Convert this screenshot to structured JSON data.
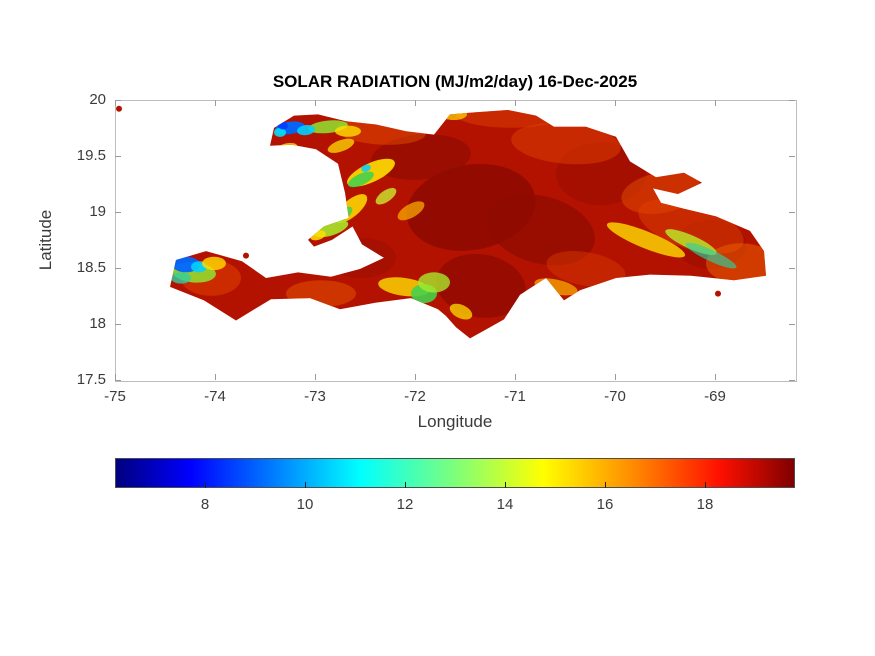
{
  "chart_data": {
    "type": "heatmap",
    "title": "SOLAR RADIATION (MJ/m2/day) 16-Dec-2025",
    "xlabel": "Longitude",
    "ylabel": "Latitude",
    "region": "Hispaniola (Haiti and Dominican Republic)",
    "units": "MJ/m2/day",
    "xlim": [
      -75,
      -68.2
    ],
    "ylim": [
      17.5,
      20
    ],
    "x_ticks": [
      -75,
      -74,
      -73,
      -72,
      -71,
      -70,
      -69
    ],
    "y_ticks": [
      20,
      19.5,
      19,
      18.5,
      18,
      17.5
    ],
    "grid": false,
    "value_summary": "Island mostly 17-19.5 MJ/m2/day (red to dark red); low-radiation patches 8-14 MJ/m2/day (blue/cyan/green/yellow) over the northwest peninsula, the southwest Tiburon peninsula tip and scattered mountain ridges",
    "base_color": "#b31200",
    "colorbar": {
      "orientation": "horizontal",
      "colormap": "jet",
      "range": [
        6.2,
        19.8
      ],
      "ticks": [
        8,
        10,
        12,
        14,
        16,
        18
      ],
      "stops": [
        {
          "pos": 0,
          "color": "#00007f"
        },
        {
          "pos": 11,
          "color": "#0000ff"
        },
        {
          "pos": 36,
          "color": "#00ffff"
        },
        {
          "pos": 50,
          "color": "#7dff7a"
        },
        {
          "pos": 63,
          "color": "#ffff00"
        },
        {
          "pos": 77,
          "color": "#ff8400"
        },
        {
          "pos": 89,
          "color": "#ff1000"
        },
        {
          "pos": 100,
          "color": "#7f0000"
        }
      ]
    },
    "coastline": [
      [
        -73.42,
        19.76
      ],
      [
        -73.22,
        19.87
      ],
      [
        -72.98,
        19.88
      ],
      [
        -72.7,
        19.82
      ],
      [
        -72.4,
        19.79
      ],
      [
        -72.1,
        19.73
      ],
      [
        -71.82,
        19.7
      ],
      [
        -71.66,
        19.88
      ],
      [
        -71.4,
        19.9
      ],
      [
        -71.08,
        19.92
      ],
      [
        -70.8,
        19.87
      ],
      [
        -70.62,
        19.77
      ],
      [
        -70.3,
        19.77
      ],
      [
        -70.0,
        19.68
      ],
      [
        -69.86,
        19.46
      ],
      [
        -69.6,
        19.32
      ],
      [
        -69.32,
        19.36
      ],
      [
        -69.14,
        19.27
      ],
      [
        -69.38,
        19.17
      ],
      [
        -69.63,
        19.22
      ],
      [
        -69.55,
        19.09
      ],
      [
        -69.33,
        19.04
      ],
      [
        -69.0,
        18.97
      ],
      [
        -68.66,
        18.84
      ],
      [
        -68.52,
        18.66
      ],
      [
        -68.5,
        18.44
      ],
      [
        -68.82,
        18.4
      ],
      [
        -69.25,
        18.44
      ],
      [
        -69.66,
        18.45
      ],
      [
        -70.0,
        18.42
      ],
      [
        -70.36,
        18.31
      ],
      [
        -70.52,
        18.22
      ],
      [
        -70.7,
        18.42
      ],
      [
        -70.96,
        18.27
      ],
      [
        -71.12,
        18.05
      ],
      [
        -71.32,
        17.95
      ],
      [
        -71.46,
        17.88
      ],
      [
        -71.6,
        17.98
      ],
      [
        -71.7,
        18.08
      ],
      [
        -71.78,
        18.14
      ],
      [
        -72.05,
        18.24
      ],
      [
        -72.4,
        18.2
      ],
      [
        -72.76,
        18.14
      ],
      [
        -73.06,
        18.24
      ],
      [
        -73.45,
        18.23
      ],
      [
        -73.8,
        18.04
      ],
      [
        -74.12,
        18.22
      ],
      [
        -74.46,
        18.34
      ],
      [
        -74.4,
        18.58
      ],
      [
        -74.1,
        18.66
      ],
      [
        -73.74,
        18.57
      ],
      [
        -73.5,
        18.42
      ],
      [
        -73.18,
        18.47
      ],
      [
        -72.85,
        18.43
      ],
      [
        -72.56,
        18.5
      ],
      [
        -72.32,
        18.6
      ],
      [
        -72.54,
        18.72
      ],
      [
        -72.67,
        18.94
      ],
      [
        -72.71,
        19.18
      ],
      [
        -72.78,
        19.44
      ],
      [
        -73.0,
        19.57
      ],
      [
        -73.24,
        19.61
      ],
      [
        -73.46,
        19.6
      ]
    ],
    "gonave_island": [
      [
        -73.08,
        18.76
      ],
      [
        -72.92,
        18.88
      ],
      [
        -72.66,
        18.96
      ],
      [
        -72.6,
        18.9
      ],
      [
        -72.84,
        18.76
      ],
      [
        -73.02,
        18.7
      ]
    ],
    "islets": [
      {
        "lon": -74.97,
        "lat": 19.93,
        "r": 3
      },
      {
        "lon": -68.98,
        "lat": 18.28,
        "r": 3
      },
      {
        "lon": -73.7,
        "lat": 18.62,
        "r": 3
      }
    ],
    "patches": [
      {
        "lon": -71.45,
        "lat": 19.05,
        "rx": 0.65,
        "ry": 0.38,
        "rot": -10,
        "color": "#8c0900",
        "op": 0.85
      },
      {
        "lon": -70.75,
        "lat": 18.85,
        "rx": 0.55,
        "ry": 0.3,
        "rot": 15,
        "color": "#900b00",
        "op": 0.75
      },
      {
        "lon": -71.95,
        "lat": 19.5,
        "rx": 0.5,
        "ry": 0.2,
        "rot": -5,
        "color": "#900b00",
        "op": 0.7
      },
      {
        "lon": -70.15,
        "lat": 19.35,
        "rx": 0.45,
        "ry": 0.28,
        "rot": 0,
        "color": "#9a0d00",
        "op": 0.6
      },
      {
        "lon": -71.35,
        "lat": 18.35,
        "rx": 0.45,
        "ry": 0.28,
        "rot": 10,
        "color": "#8c0900",
        "op": 0.7
      },
      {
        "lon": -69.05,
        "lat": 18.72,
        "rx": 0.35,
        "ry": 0.22,
        "rot": 0,
        "color": "#9a0d00",
        "op": 0.6
      },
      {
        "lon": -72.55,
        "lat": 18.6,
        "rx": 0.35,
        "ry": 0.18,
        "rot": 0,
        "color": "#9a0d00",
        "op": 0.5
      },
      {
        "lon": -70.5,
        "lat": 19.62,
        "rx": 0.55,
        "ry": 0.18,
        "rot": 5,
        "color": "#e04000",
        "op": 0.5
      },
      {
        "lon": -69.55,
        "lat": 19.18,
        "rx": 0.4,
        "ry": 0.18,
        "rot": -10,
        "color": "#ea5500",
        "op": 0.45
      },
      {
        "lon": -69.25,
        "lat": 18.88,
        "rx": 0.55,
        "ry": 0.2,
        "rot": 18,
        "color": "#e04000",
        "op": 0.5
      },
      {
        "lon": -68.75,
        "lat": 18.55,
        "rx": 0.35,
        "ry": 0.18,
        "rot": 0,
        "color": "#ef6400",
        "op": 0.5
      },
      {
        "lon": -74.05,
        "lat": 18.42,
        "rx": 0.3,
        "ry": 0.16,
        "rot": 0,
        "color": "#e04000",
        "op": 0.55
      },
      {
        "lon": -72.95,
        "lat": 18.28,
        "rx": 0.35,
        "ry": 0.12,
        "rot": 0,
        "color": "#ea5500",
        "op": 0.5
      },
      {
        "lon": -71.05,
        "lat": 19.88,
        "rx": 0.55,
        "ry": 0.12,
        "rot": 0,
        "color": "#e04000",
        "op": 0.5
      },
      {
        "lon": -72.35,
        "lat": 19.73,
        "rx": 0.45,
        "ry": 0.12,
        "rot": 3,
        "color": "#ea5500",
        "op": 0.45
      },
      {
        "lon": -70.3,
        "lat": 18.5,
        "rx": 0.4,
        "ry": 0.15,
        "rot": 10,
        "color": "#e04000",
        "op": 0.4
      },
      {
        "lon": -72.45,
        "lat": 19.36,
        "rx": 0.26,
        "ry": 0.085,
        "rot": -25,
        "color": "#ffdf00",
        "op": 0.9
      },
      {
        "lon": -72.55,
        "lat": 19.3,
        "rx": 0.14,
        "ry": 0.05,
        "rot": -25,
        "color": "#44d14a",
        "op": 0.9
      },
      {
        "lon": -72.65,
        "lat": 19.04,
        "rx": 0.2,
        "ry": 0.075,
        "rot": -40,
        "color": "#ffdf00",
        "op": 0.85
      },
      {
        "lon": -72.72,
        "lat": 18.99,
        "rx": 0.1,
        "ry": 0.045,
        "rot": -40,
        "color": "#44d14a",
        "op": 0.85
      },
      {
        "lon": -69.7,
        "lat": 18.76,
        "rx": 0.42,
        "ry": 0.075,
        "rot": 22,
        "color": "#ffdf00",
        "op": 0.8
      },
      {
        "lon": -69.25,
        "lat": 18.74,
        "rx": 0.28,
        "ry": 0.06,
        "rot": 24,
        "color": "#bdf02a",
        "op": 0.8
      },
      {
        "lon": -69.05,
        "lat": 18.62,
        "rx": 0.28,
        "ry": 0.05,
        "rot": 25,
        "color": "#2fd0a0",
        "op": 0.65
      },
      {
        "lon": -72.12,
        "lat": 18.34,
        "rx": 0.26,
        "ry": 0.08,
        "rot": 8,
        "color": "#ffdf00",
        "op": 0.8
      },
      {
        "lon": -71.92,
        "lat": 18.28,
        "rx": 0.13,
        "ry": 0.085,
        "rot": 0,
        "color": "#44d14a",
        "op": 0.9
      },
      {
        "lon": -71.82,
        "lat": 18.38,
        "rx": 0.16,
        "ry": 0.09,
        "rot": 0,
        "color": "#a8e82a",
        "op": 0.8
      },
      {
        "lon": -71.55,
        "lat": 18.12,
        "rx": 0.12,
        "ry": 0.06,
        "rot": 25,
        "color": "#ffdf00",
        "op": 0.75
      },
      {
        "lon": -70.6,
        "lat": 18.34,
        "rx": 0.22,
        "ry": 0.065,
        "rot": 12,
        "color": "#ffb300",
        "op": 0.7
      },
      {
        "lon": -71.62,
        "lat": 19.88,
        "rx": 0.13,
        "ry": 0.05,
        "rot": 0,
        "color": "#ffd000",
        "op": 0.75
      },
      {
        "lon": -72.05,
        "lat": 19.02,
        "rx": 0.15,
        "ry": 0.06,
        "rot": -30,
        "color": "#ffb300",
        "op": 0.7
      },
      {
        "lon": -73.3,
        "lat": 19.57,
        "rx": 0.12,
        "ry": 0.05,
        "rot": -15,
        "color": "#ffdf00",
        "op": 0.8
      },
      {
        "lon": -72.88,
        "lat": 19.77,
        "rx": 0.2,
        "ry": 0.055,
        "rot": -6,
        "color": "#8fe530",
        "op": 0.85
      },
      {
        "lon": -72.68,
        "lat": 19.73,
        "rx": 0.13,
        "ry": 0.05,
        "rot": 0,
        "color": "#ffdf00",
        "op": 0.8
      },
      {
        "lon": -73.26,
        "lat": 19.76,
        "rx": 0.15,
        "ry": 0.055,
        "rot": -8,
        "color": "#0068ff",
        "op": 0.95
      },
      {
        "lon": -73.1,
        "lat": 19.74,
        "rx": 0.09,
        "ry": 0.045,
        "rot": -8,
        "color": "#00d0ff",
        "op": 0.9
      },
      {
        "lon": -73.36,
        "lat": 19.72,
        "rx": 0.06,
        "ry": 0.04,
        "rot": 0,
        "color": "#00e8ff",
        "op": 0.85
      },
      {
        "lon": -73.33,
        "lat": 19.78,
        "rx": 0.05,
        "ry": 0.035,
        "rot": 0,
        "color": "#003cff",
        "op": 0.9
      },
      {
        "lon": -74.22,
        "lat": 18.47,
        "rx": 0.22,
        "ry": 0.09,
        "rot": 5,
        "color": "#8fe530",
        "op": 0.85
      },
      {
        "lon": -74.3,
        "lat": 18.54,
        "rx": 0.14,
        "ry": 0.07,
        "rot": 0,
        "color": "#0068ff",
        "op": 0.95
      },
      {
        "lon": -74.17,
        "lat": 18.52,
        "rx": 0.08,
        "ry": 0.05,
        "rot": 0,
        "color": "#00d0ff",
        "op": 0.9
      },
      {
        "lon": -74.02,
        "lat": 18.55,
        "rx": 0.12,
        "ry": 0.06,
        "rot": 0,
        "color": "#ffdf00",
        "op": 0.8
      },
      {
        "lon": -74.35,
        "lat": 18.42,
        "rx": 0.1,
        "ry": 0.05,
        "rot": 0,
        "color": "#2fd0a0",
        "op": 0.8
      },
      {
        "lon": -72.85,
        "lat": 18.86,
        "rx": 0.18,
        "ry": 0.06,
        "rot": -18,
        "color": "#a8e82a",
        "op": 0.9
      },
      {
        "lon": -72.98,
        "lat": 18.8,
        "rx": 0.08,
        "ry": 0.04,
        "rot": -18,
        "color": "#ffdf00",
        "op": 0.85
      },
      {
        "lon": -72.5,
        "lat": 19.4,
        "rx": 0.05,
        "ry": 0.03,
        "rot": -20,
        "color": "#00d0ff",
        "op": 0.85
      },
      {
        "lon": -72.3,
        "lat": 19.15,
        "rx": 0.12,
        "ry": 0.05,
        "rot": -35,
        "color": "#cdea2f",
        "op": 0.8
      },
      {
        "lon": -72.75,
        "lat": 19.6,
        "rx": 0.14,
        "ry": 0.05,
        "rot": -20,
        "color": "#ffdf00",
        "op": 0.75
      }
    ]
  }
}
